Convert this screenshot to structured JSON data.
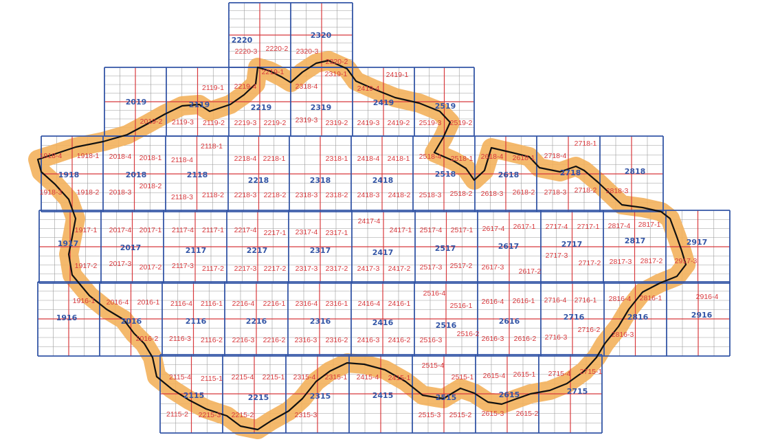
{
  "map": {
    "colors": {
      "sheet_border": "#3355a6",
      "sheet_label": "#3355a6",
      "quadrant_line": "#d8383c",
      "quadrant_label": "#d8383c",
      "buffer": "#f3b15c",
      "country_border": "#111111",
      "grid_minor": "#9a9a9a"
    },
    "sheet_labels": [
      "2220",
      "2320",
      "2019",
      "2119",
      "2219",
      "2319",
      "2419",
      "2519",
      "2118",
      "2218",
      "2318",
      "2418",
      "2518",
      "2618",
      "2718",
      "2818",
      "1918",
      "2018",
      "1917",
      "2017",
      "2117",
      "2217",
      "2317",
      "2417",
      "2517",
      "2617",
      "2717",
      "2817",
      "2917",
      "1916",
      "2016",
      "2116",
      "2216",
      "2316",
      "2416",
      "2516",
      "2616",
      "2716",
      "2816",
      "2916",
      "2115",
      "2215",
      "2315",
      "2415",
      "2515",
      "2615",
      "2715"
    ],
    "quadrant_labels": [
      "2220-3",
      "2220-2",
      "2320-3",
      "2219-1",
      "2320-2",
      "2319-1",
      "2419-1",
      "2119-1",
      "2219-4",
      "2318-4",
      "2419-4",
      "2019-2",
      "2119-3",
      "2119-2",
      "2219-3",
      "2219-2",
      "2319-3",
      "2319-2",
      "2419-3",
      "2419-2",
      "2519-3",
      "2519-2",
      "2718-1",
      "2118-1",
      "1918-4",
      "1918-1",
      "2018-4",
      "2018-1",
      "2118-4",
      "2218-4",
      "2218-1",
      "2318-1",
      "2418-4",
      "2418-1",
      "2518-4",
      "2518-1",
      "2618-4",
      "2618-1",
      "2718-4",
      "2018-2",
      "1918-3",
      "1918-2",
      "2018-3",
      "2118-3",
      "2118-2",
      "2218-3",
      "2218-2",
      "2318-3",
      "2318-2",
      "2418-3",
      "2418-2",
      "2518-3",
      "2518-2",
      "2618-3",
      "2618-2",
      "2718-3",
      "2718-2",
      "2818-3",
      "2417-4",
      "1917-1",
      "2017-4",
      "2017-1",
      "2117-4",
      "2117-1",
      "2217-4",
      "2217-1",
      "2317-4",
      "2317-1",
      "2417-1",
      "2517-4",
      "2517-1",
      "2617-4",
      "2617-1",
      "2717-4",
      "2717-1",
      "2817-4",
      "2817-1",
      "2717-3",
      "1917-2",
      "2017-3",
      "2017-2",
      "2117-3",
      "2117-2",
      "2217-3",
      "2217-2",
      "2317-3",
      "2317-2",
      "2417-3",
      "2417-2",
      "2517-3",
      "2517-2",
      "2617-3",
      "2617-2",
      "2717-2",
      "2817-3",
      "2817-2",
      "2917-3",
      "2516-4",
      "1916-1",
      "2016-4",
      "2016-1",
      "2116-4",
      "2116-1",
      "2216-4",
      "2216-1",
      "2316-4",
      "2316-1",
      "2416-4",
      "2416-1",
      "2516-1",
      "2616-4",
      "2616-1",
      "2716-4",
      "2716-1",
      "2816-4",
      "2816-1",
      "2916-4",
      "2716-2",
      "2016-2",
      "2116-3",
      "2116-2",
      "2216-3",
      "2216-2",
      "2316-3",
      "2316-2",
      "2416-3",
      "2416-2",
      "2516-3",
      "2516-2",
      "2616-3",
      "2616-2",
      "2716-3",
      "2816-3",
      "2515-4",
      "2115-4",
      "2115-1",
      "2215-4",
      "2215-1",
      "2315-4",
      "2315-1",
      "2415-4",
      "2415-1",
      "2515-1",
      "2615-4",
      "2615-1",
      "2715-4",
      "2715-1",
      "2115-2",
      "2215-3",
      "2215-2",
      "2315-3",
      "2515-3",
      "2515-2",
      "2615-3",
      "2615-2"
    ]
  }
}
